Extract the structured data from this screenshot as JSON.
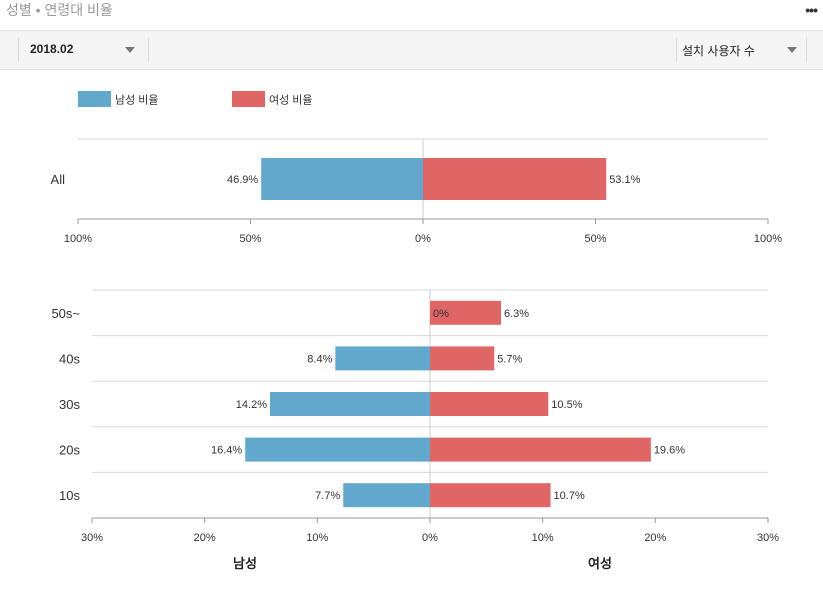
{
  "header": {
    "title": "성별 • 연령대 비율",
    "more_icon": "more-horizontal-icon"
  },
  "toolbar": {
    "period_value": "2018.02",
    "metric_value": "설치 사용자 수"
  },
  "colors": {
    "male": "#62a8cc",
    "female": "#e06666",
    "grid": "#d9d9d9",
    "axis": "#999999"
  },
  "chart_data": [
    {
      "type": "bar",
      "orientation": "horizontal-diverging",
      "legend": [
        "남성 비율",
        "여성 비율"
      ],
      "legend_placement": "top-left",
      "categories": [
        "All"
      ],
      "series": [
        {
          "name": "남성 비율",
          "values": [
            46.9
          ]
        },
        {
          "name": "여성 비율",
          "values": [
            53.1
          ]
        }
      ],
      "value_labels": {
        "left": [
          "46.9%"
        ],
        "right": [
          "53.1%"
        ]
      },
      "xlim": [
        -100,
        100
      ],
      "ticks": [
        -100,
        -50,
        0,
        50,
        100
      ],
      "tick_labels": [
        "100%",
        "50%",
        "0%",
        "50%",
        "100%"
      ]
    },
    {
      "type": "bar",
      "orientation": "horizontal-diverging",
      "categories": [
        "50s~",
        "40s",
        "30s",
        "20s",
        "10s"
      ],
      "series": [
        {
          "name": "남성",
          "values": [
            0,
            8.4,
            14.2,
            16.4,
            7.7
          ]
        },
        {
          "name": "여성",
          "values": [
            6.3,
            5.7,
            10.5,
            19.6,
            10.7
          ]
        }
      ],
      "value_labels": {
        "left": [
          "0%",
          "8.4%",
          "14.2%",
          "16.4%",
          "7.7%"
        ],
        "right": [
          "6.3%",
          "5.7%",
          "10.5%",
          "19.6%",
          "10.7%"
        ]
      },
      "xlim": [
        -30,
        30
      ],
      "ticks": [
        -30,
        -20,
        -10,
        0,
        10,
        20,
        30
      ],
      "tick_labels": [
        "30%",
        "20%",
        "10%",
        "0%",
        "10%",
        "20%",
        "30%"
      ],
      "side_labels": [
        "남성",
        "여성"
      ]
    }
  ]
}
